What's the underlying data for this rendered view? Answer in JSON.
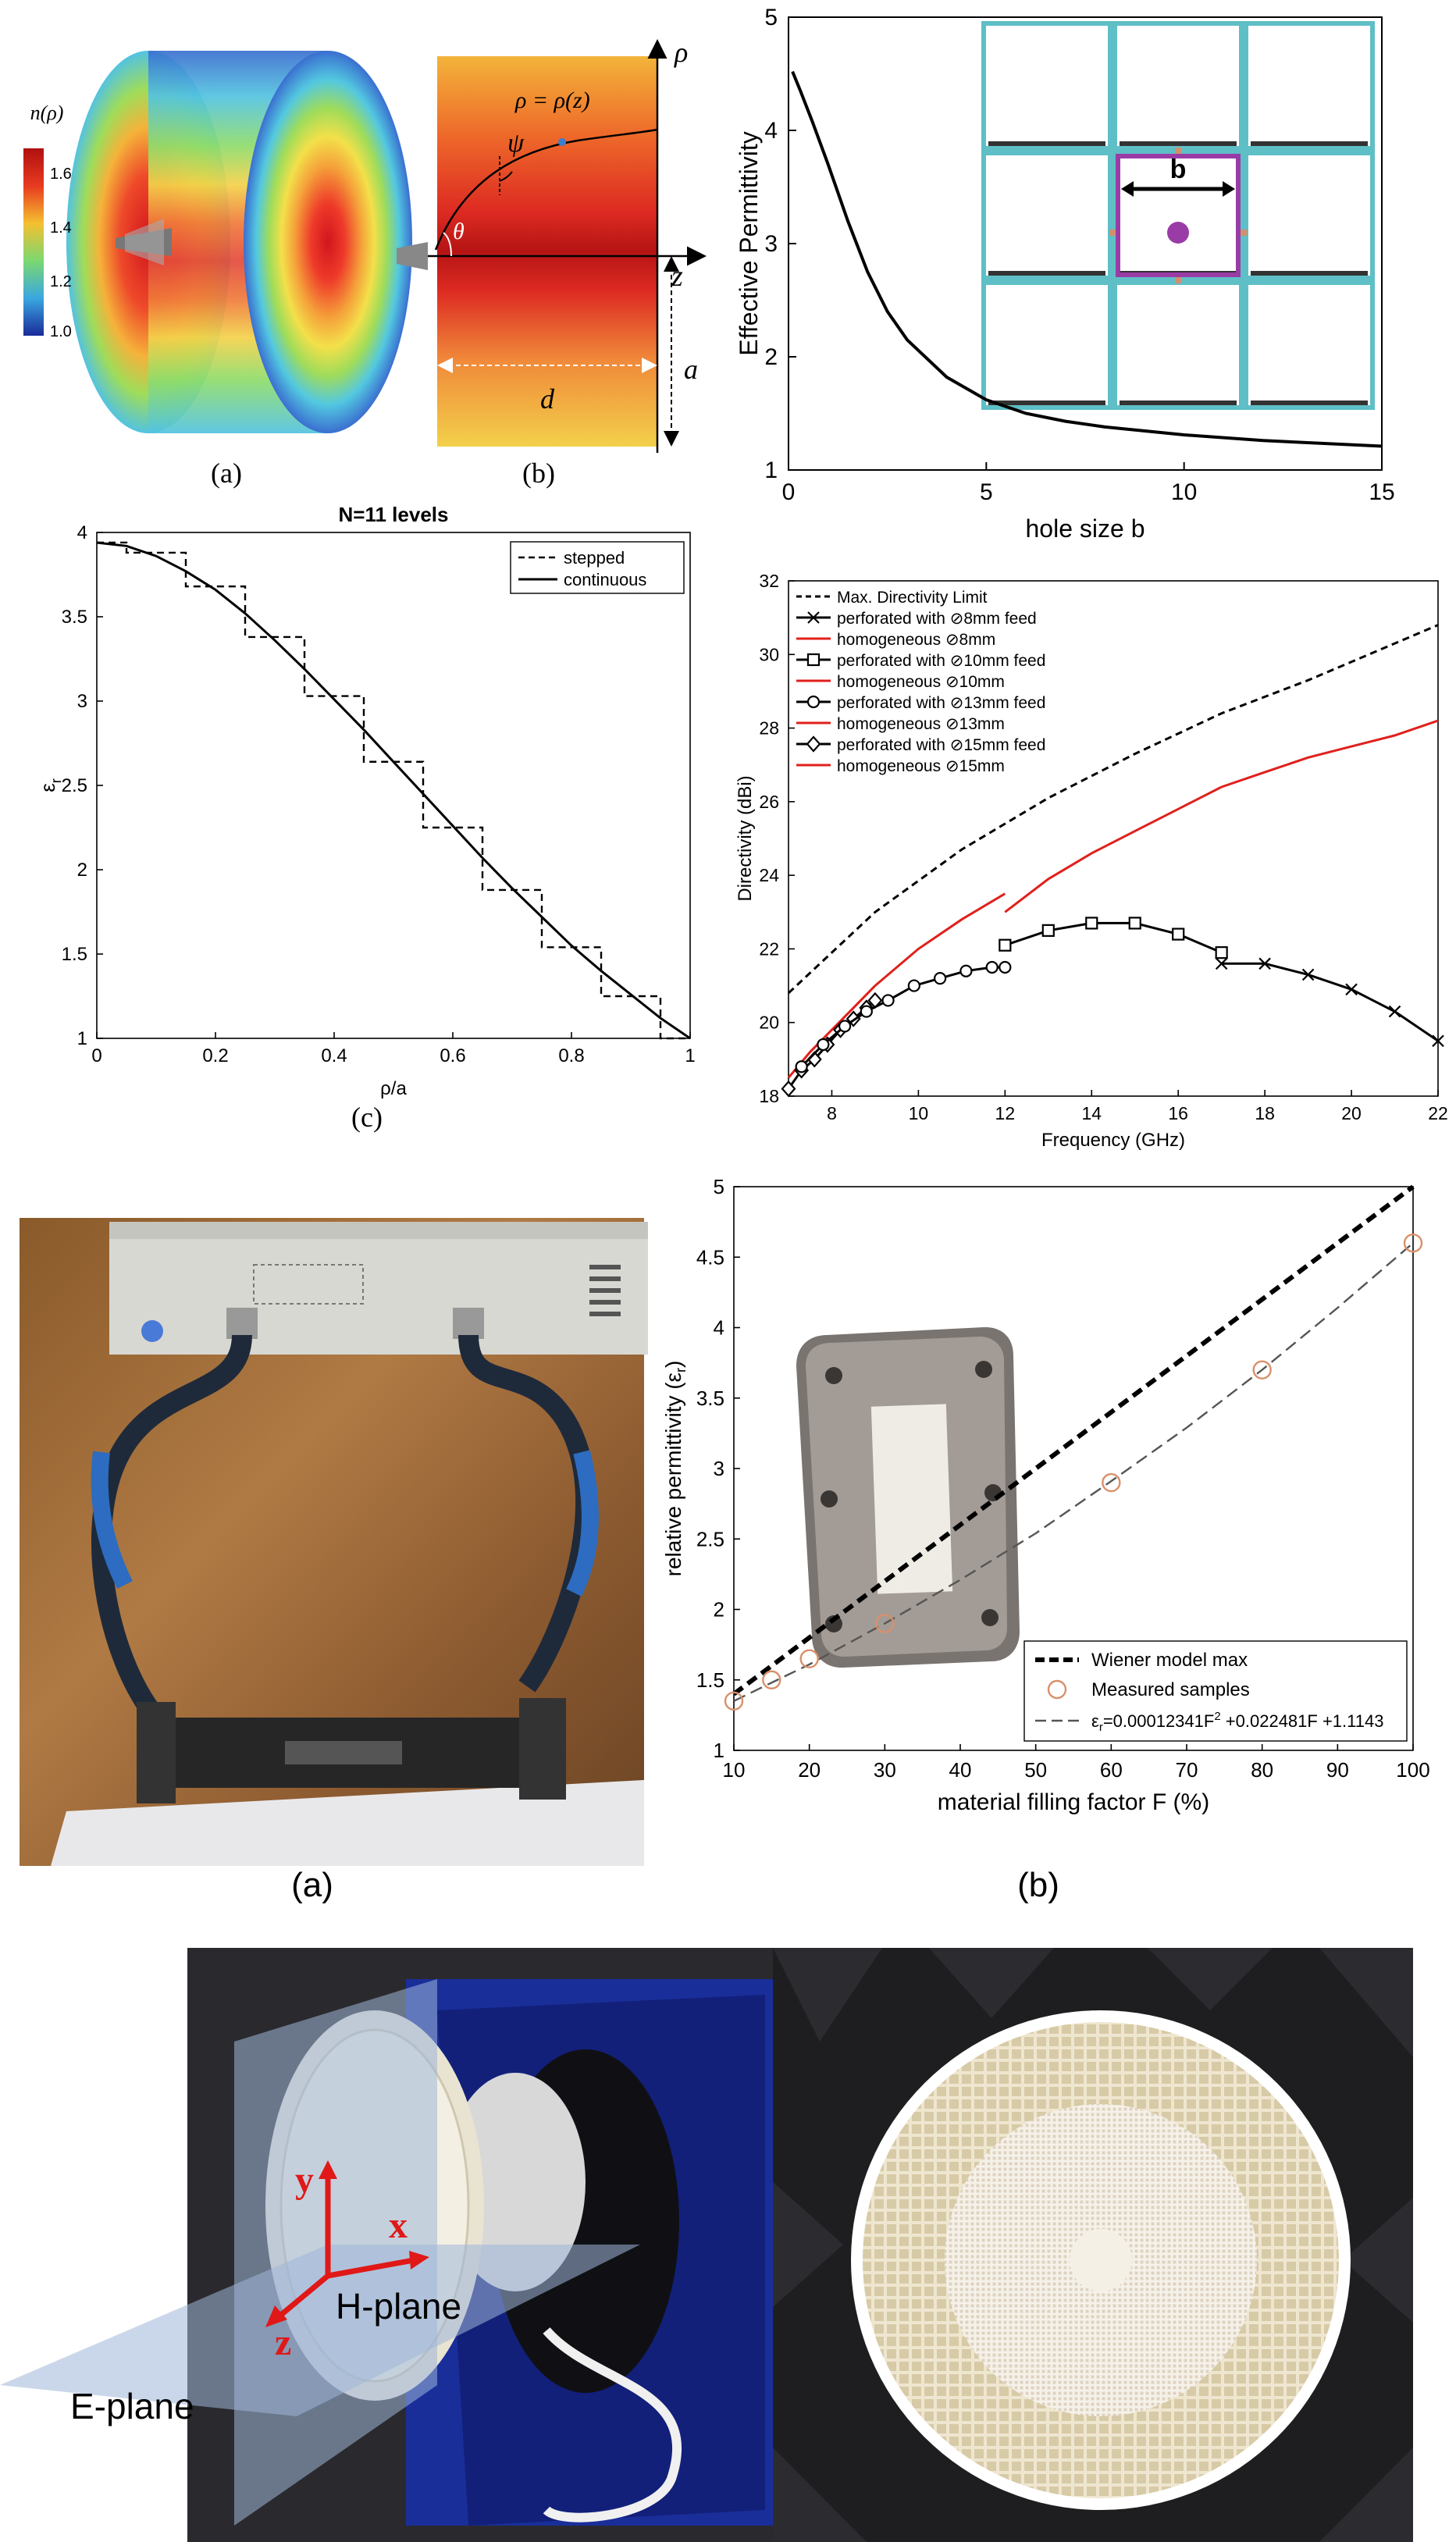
{
  "figure1": {
    "cylinder": {
      "index_label": "n(ρ)",
      "colorbar_ticks": [
        "1.6",
        "1.4",
        "1.2",
        "1.0"
      ],
      "caption": "(a)"
    },
    "profile": {
      "rho_axis": "ρ",
      "z_axis": "z",
      "curve_label": "ρ = ρ(z)",
      "psi": "ψ",
      "theta": "θ",
      "d_label": "d",
      "a_label": "a",
      "caption": "(b)"
    }
  },
  "figure2": {
    "caption": "(c)"
  },
  "figure3": {
    "caption_a": "(a)",
    "caption_b": "(b)"
  },
  "figure4": {
    "y_label": "y",
    "x_label": "x",
    "z_label": "z",
    "h_plane": "H-plane",
    "e_plane": "E-plane"
  },
  "colors": {
    "black": "#000000",
    "red": "#e0201c",
    "cyan": "#5fbfc6",
    "purple": "#9a3ca6",
    "orange_marker": "#d09070"
  },
  "chart_data": [
    {
      "id": "effective-permittivity",
      "type": "line",
      "title": "",
      "xlabel": "hole size b",
      "ylabel": "Effective Permittivity",
      "xlim": [
        0,
        15
      ],
      "ylim": [
        1,
        5
      ],
      "x_ticks": [
        0,
        5,
        10,
        15
      ],
      "y_ticks": [
        1,
        2,
        3,
        4,
        5
      ],
      "inset_label": "b",
      "series": [
        {
          "x": [
            0.1,
            0.3,
            0.6,
            1,
            1.5,
            2,
            2.5,
            3,
            4,
            5,
            6,
            7,
            8,
            10,
            12,
            15
          ],
          "y": [
            4.52,
            4.35,
            4.08,
            3.7,
            3.2,
            2.75,
            2.4,
            2.15,
            1.82,
            1.62,
            1.5,
            1.43,
            1.38,
            1.31,
            1.26,
            1.21
          ]
        }
      ]
    },
    {
      "id": "stepped-vs-continuous",
      "type": "line",
      "title": "N=11 levels",
      "xlabel": "ρ/a",
      "ylabel": "ε",
      "ylabel_sub": "r",
      "xlim": [
        0,
        1
      ],
      "ylim": [
        1,
        4
      ],
      "x_ticks": [
        "0",
        "0.2",
        "0.4",
        "0.6",
        "0.8",
        "1"
      ],
      "y_ticks": [
        "1",
        "1.5",
        "2",
        "2.5",
        "3",
        "3.5",
        "4"
      ],
      "legend": [
        "stepped",
        "continuous"
      ],
      "stepped": {
        "edges": [
          0,
          0.05,
          0.15,
          0.25,
          0.35,
          0.45,
          0.55,
          0.65,
          0.75,
          0.85,
          0.95,
          1
        ],
        "levels": [
          3.94,
          3.88,
          3.68,
          3.38,
          3.03,
          2.64,
          2.25,
          1.88,
          1.54,
          1.25,
          1.0
        ]
      },
      "continuous": {
        "x": [
          0,
          0.05,
          0.1,
          0.15,
          0.2,
          0.25,
          0.3,
          0.35,
          0.4,
          0.45,
          0.5,
          0.55,
          0.6,
          0.65,
          0.7,
          0.75,
          0.8,
          0.85,
          0.9,
          0.95,
          1
        ],
        "y": [
          3.94,
          3.92,
          3.86,
          3.77,
          3.66,
          3.52,
          3.36,
          3.19,
          3.01,
          2.83,
          2.64,
          2.45,
          2.26,
          2.07,
          1.89,
          1.72,
          1.55,
          1.4,
          1.26,
          1.12,
          1.0
        ]
      }
    },
    {
      "id": "directivity",
      "type": "line",
      "title": "",
      "xlabel": "Frequency (GHz)",
      "ylabel": "Directivity (dBi)",
      "xlim": [
        7,
        22
      ],
      "ylim": [
        18,
        32
      ],
      "x_ticks": [
        8,
        10,
        12,
        14,
        16,
        18,
        20,
        22
      ],
      "y_ticks": [
        18,
        20,
        22,
        24,
        26,
        28,
        30,
        32
      ],
      "legend": [
        "Max. Directivity Limit",
        "perforated with ⊘8mm feed",
        "homogeneous ⊘8mm",
        "perforated with ⊘10mm feed",
        "homogeneous ⊘10mm",
        "perforated with ⊘13mm feed",
        "homogeneous ⊘13mm",
        "perforated with ⊘15mm feed",
        "homogeneous ⊘15mm"
      ],
      "series": [
        {
          "name": "Max. Directivity Limit",
          "style": "dashed",
          "x": [
            7,
            9,
            11,
            13,
            15,
            17,
            19,
            22
          ],
          "y": [
            20.8,
            23.0,
            24.7,
            26.1,
            27.3,
            28.4,
            29.3,
            30.8
          ]
        },
        {
          "name": "homogeneous ⊘15mm",
          "style": "red",
          "x": [
            7,
            7.5,
            8,
            8.5,
            9
          ],
          "y": [
            18.5,
            19.2,
            19.8,
            20.4,
            21.0
          ]
        },
        {
          "name": "homogeneous ⊘13mm",
          "style": "red",
          "x": [
            9,
            10,
            11,
            12
          ],
          "y": [
            21.0,
            22.0,
            22.8,
            23.5
          ]
        },
        {
          "name": "homogeneous ⊘10mm",
          "style": "red",
          "x": [
            12,
            13,
            14,
            15,
            16,
            17
          ],
          "y": [
            23.0,
            23.9,
            24.6,
            25.2,
            25.8,
            26.4
          ]
        },
        {
          "name": "homogeneous ⊘8mm",
          "style": "red",
          "x": [
            17,
            18,
            19,
            20,
            21,
            22
          ],
          "y": [
            26.4,
            26.8,
            27.2,
            27.5,
            27.8,
            28.2
          ]
        },
        {
          "name": "perforated with ⊘15mm feed",
          "style": "black",
          "marker": "diamond",
          "x": [
            7,
            7.3,
            7.6,
            7.9,
            8.2,
            8.5,
            8.8,
            9
          ],
          "y": [
            18.2,
            18.7,
            19.0,
            19.4,
            19.8,
            20.1,
            20.4,
            20.6
          ]
        },
        {
          "name": "perforated with ⊘13mm feed",
          "style": "black",
          "marker": "circle",
          "x": [
            7.3,
            7.8,
            8.3,
            8.8,
            9.3,
            9.9,
            10.5,
            11.1,
            11.7,
            12
          ],
          "y": [
            18.8,
            19.4,
            19.9,
            20.3,
            20.6,
            21.0,
            21.2,
            21.4,
            21.5,
            21.5
          ]
        },
        {
          "name": "perforated with ⊘10mm feed",
          "style": "black",
          "marker": "square",
          "x": [
            12,
            13,
            14,
            15,
            16,
            17
          ],
          "y": [
            22.1,
            22.5,
            22.7,
            22.7,
            22.4,
            21.9
          ]
        },
        {
          "name": "perforated with ⊘8mm feed",
          "style": "black",
          "marker": "x",
          "x": [
            17,
            18,
            19,
            20,
            21,
            22
          ],
          "y": [
            21.6,
            21.6,
            21.3,
            20.9,
            20.3,
            19.5
          ]
        }
      ]
    },
    {
      "id": "relative-permittivity",
      "type": "scatter",
      "title": "",
      "xlabel": "material filling factor F (%)",
      "ylabel": "relative permittivity (ε",
      "ylabel_sub": "r",
      "ylabel_end": ")",
      "xlim": [
        10,
        100
      ],
      "ylim": [
        1,
        5
      ],
      "x_ticks": [
        10,
        20,
        30,
        40,
        50,
        60,
        70,
        80,
        90,
        100
      ],
      "y_ticks": [
        "1",
        "1.5",
        "2",
        "2.5",
        "3",
        "3.5",
        "4",
        "4.5",
        "5"
      ],
      "legend": [
        "Wiener model max",
        "Measured samples"
      ],
      "fit_label": {
        "pre": "ε",
        "sub": "r",
        "mid": "=0.00012341F",
        "sup": "2",
        "post": " +0.022481F +1.1143"
      },
      "wiener": {
        "x": [
          10,
          100
        ],
        "y": [
          1.4,
          5.0
        ]
      },
      "measured": {
        "x": [
          10,
          15,
          20,
          30,
          60,
          80,
          100
        ],
        "y": [
          1.35,
          1.5,
          1.65,
          1.9,
          2.9,
          3.7,
          4.6
        ]
      },
      "fit": {
        "x": [
          10,
          20,
          30,
          40,
          50,
          60,
          70,
          80,
          90,
          100
        ],
        "y": [
          1.35,
          1.61,
          1.9,
          2.21,
          2.54,
          2.91,
          3.29,
          3.7,
          4.14,
          4.6
        ]
      }
    }
  ]
}
